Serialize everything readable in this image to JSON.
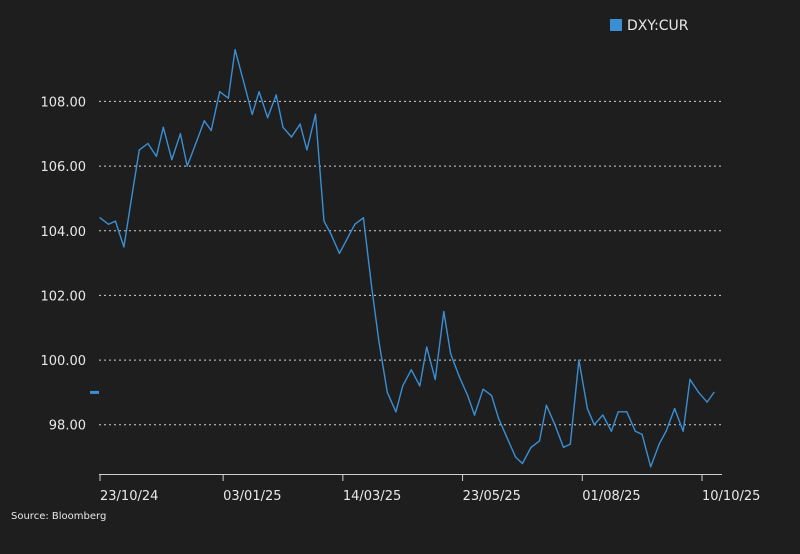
{
  "source_text": "Source: Bloomberg",
  "colors": {
    "background": "#1e1e1e",
    "series": "#3a8fd4",
    "text": "#e8e8e8",
    "grid": "#d0d0d0"
  },
  "chart_data": {
    "type": "line",
    "title": "",
    "xlabel": "",
    "ylabel": "",
    "ylim": [
      96.6,
      109.9
    ],
    "y_ticks": [
      "98.00",
      "100.00",
      "102.00",
      "104.00",
      "106.00",
      "108.00"
    ],
    "y_tick_values": [
      98,
      100,
      102,
      104,
      106,
      108
    ],
    "x_ticks": [
      "23/10/24",
      "03/01/25",
      "14/03/25",
      "23/05/25",
      "01/08/25",
      "10/10/25"
    ],
    "x_tick_dates": [
      "2024-10-23",
      "2025-01-03",
      "2025-03-14",
      "2025-05-23",
      "2025-08-01",
      "2025-10-10"
    ],
    "grid": "horizontal dotted",
    "legend_position": "top-right",
    "last_value_marker": 99.0,
    "series": [
      {
        "name": "DXY:CUR",
        "color": "#3a8fd4",
        "x": [
          "2024-10-23",
          "2024-10-28",
          "2024-11-01",
          "2024-11-06",
          "2024-11-11",
          "2024-11-15",
          "2024-11-20",
          "2024-11-25",
          "2024-11-29",
          "2024-12-04",
          "2024-12-09",
          "2024-12-13",
          "2024-12-18",
          "2024-12-23",
          "2024-12-27",
          "2025-01-01",
          "2025-01-06",
          "2025-01-10",
          "2025-01-15",
          "2025-01-20",
          "2025-01-24",
          "2025-01-29",
          "2025-02-03",
          "2025-02-07",
          "2025-02-12",
          "2025-02-17",
          "2025-02-21",
          "2025-02-26",
          "2025-03-03",
          "2025-03-07",
          "2025-03-12",
          "2025-03-17",
          "2025-03-21",
          "2025-03-26",
          "2025-03-31",
          "2025-04-04",
          "2025-04-09",
          "2025-04-14",
          "2025-04-18",
          "2025-04-23",
          "2025-04-28",
          "2025-05-02",
          "2025-05-07",
          "2025-05-12",
          "2025-05-16",
          "2025-05-21",
          "2025-05-26",
          "2025-05-30",
          "2025-06-04",
          "2025-06-09",
          "2025-06-13",
          "2025-06-18",
          "2025-06-23",
          "2025-06-27",
          "2025-07-02",
          "2025-07-07",
          "2025-07-11",
          "2025-07-16",
          "2025-07-21",
          "2025-07-25",
          "2025-07-30",
          "2025-08-04",
          "2025-08-08",
          "2025-08-13",
          "2025-08-18",
          "2025-08-22",
          "2025-08-27",
          "2025-09-01",
          "2025-09-05",
          "2025-09-10",
          "2025-09-15",
          "2025-09-19",
          "2025-09-24",
          "2025-09-29",
          "2025-10-03",
          "2025-10-08",
          "2025-10-13",
          "2025-10-17"
        ],
        "values": [
          104.4,
          104.2,
          104.3,
          103.5,
          105.2,
          106.5,
          106.7,
          106.3,
          107.2,
          106.2,
          107.0,
          106.0,
          106.7,
          107.4,
          107.1,
          108.3,
          108.1,
          109.6,
          108.6,
          107.6,
          108.3,
          107.5,
          108.2,
          107.2,
          106.9,
          107.3,
          106.5,
          107.6,
          104.3,
          103.9,
          103.3,
          103.8,
          104.2,
          104.4,
          102.2,
          100.6,
          99.0,
          98.4,
          99.2,
          99.7,
          99.2,
          100.4,
          99.4,
          101.5,
          100.2,
          99.5,
          98.9,
          98.3,
          99.1,
          98.9,
          98.2,
          97.6,
          97.0,
          96.8,
          97.3,
          97.5,
          98.6,
          98.0,
          97.3,
          97.4,
          100.0,
          98.5,
          98.0,
          98.3,
          97.8,
          98.4,
          98.4,
          97.8,
          97.7,
          96.7,
          97.4,
          97.8,
          98.5,
          97.8,
          99.4,
          99.0,
          98.7,
          99.0
        ]
      }
    ]
  }
}
